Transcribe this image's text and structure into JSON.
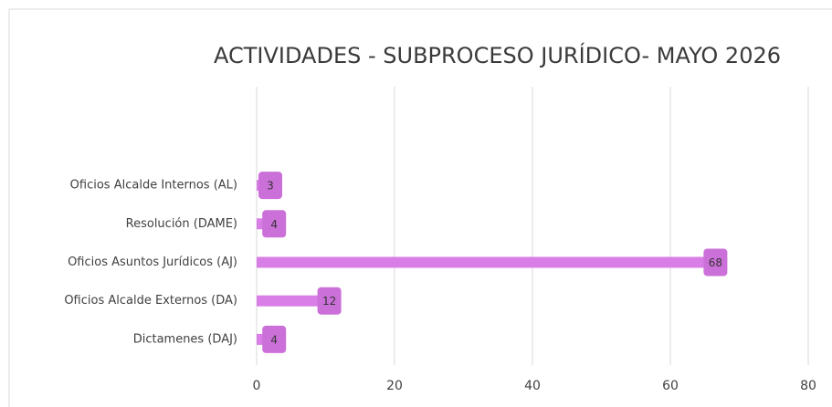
{
  "chart_data": {
    "type": "bar",
    "orientation": "horizontal",
    "title": "ACTIVIDADES - SUBPROCESO JURÍDICO- MAYO 2026",
    "categories": [
      "Oficios Alcalde Internos (AL)",
      "Resolución (DAME)",
      "Oficios Asuntos Jurídicos (AJ)",
      "Oficios Alcalde Externos (DA)",
      "Dictamenes (DAJ)"
    ],
    "values": [
      3,
      4,
      68,
      12,
      4
    ],
    "color": "#d97ee6",
    "xlim": [
      0,
      80
    ],
    "xticks": [
      0,
      20,
      40,
      60,
      80
    ],
    "grid": true
  }
}
